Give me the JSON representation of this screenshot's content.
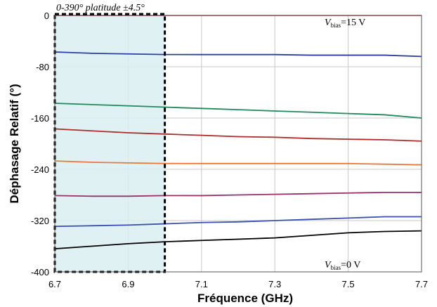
{
  "chart_data": {
    "type": "line",
    "xlabel": "Fréquence (GHz)",
    "ylabel": "Déphasage Relatif (°)",
    "xlim": [
      6.7,
      7.7
    ],
    "ylim": [
      -400,
      0
    ],
    "xticks": [
      "6.7",
      "6.9",
      "7.1",
      "7.3",
      "7.5",
      "7.7"
    ],
    "yticks": [
      "0",
      "-80",
      "-160",
      "-240",
      "-320",
      "-400"
    ],
    "grid": true,
    "x": [
      6.7,
      6.8,
      6.9,
      7.0,
      7.1,
      7.2,
      7.3,
      7.4,
      7.5,
      7.6,
      7.7
    ],
    "series": [
      {
        "color": "#e03030",
        "values": [
          0,
          0,
          0,
          0,
          0,
          0,
          0,
          0,
          0,
          0,
          0
        ]
      },
      {
        "color": "#2a3f9f",
        "values": [
          -57,
          -59,
          -60,
          -61,
          -61,
          -61,
          -61,
          -62,
          -62,
          -62,
          -64
        ]
      },
      {
        "color": "#1e8a5a",
        "values": [
          -137,
          -139,
          -141,
          -143,
          -145,
          -147,
          -149,
          -151,
          -153,
          -155,
          -160
        ]
      },
      {
        "color": "#b02a2a",
        "values": [
          -177,
          -180,
          -183,
          -185,
          -187,
          -189,
          -190,
          -192,
          -193,
          -194,
          -196
        ]
      },
      {
        "color": "#e8783a",
        "values": [
          -227,
          -229,
          -230,
          -231,
          -231,
          -231,
          -231,
          -231,
          -231,
          -232,
          -233
        ]
      },
      {
        "color": "#9a2e6e",
        "values": [
          -281,
          -282,
          -282,
          -281,
          -281,
          -280,
          -279,
          -278,
          -277,
          -276,
          -276
        ]
      },
      {
        "color": "#3a4fb0",
        "values": [
          -329,
          -328,
          -327,
          -325,
          -323,
          -322,
          -320,
          -318,
          -316,
          -314,
          -314
        ]
      },
      {
        "color": "#000000",
        "values": [
          -364,
          -360,
          -356,
          -353,
          -351,
          -349,
          -347,
          -343,
          -339,
          -337,
          -336
        ]
      }
    ],
    "highlight": {
      "x_range": [
        6.7,
        7.0
      ],
      "fill": "#daeef2",
      "border": "dashed"
    },
    "annotations": {
      "region_label": "0-390° platitude ±4.5°",
      "top_label": {
        "prefix": "V",
        "sub": "bias",
        "suffix": "=15 V"
      },
      "bottom_label": {
        "prefix": "V",
        "sub": "bias",
        "suffix": "=0 V"
      }
    }
  }
}
